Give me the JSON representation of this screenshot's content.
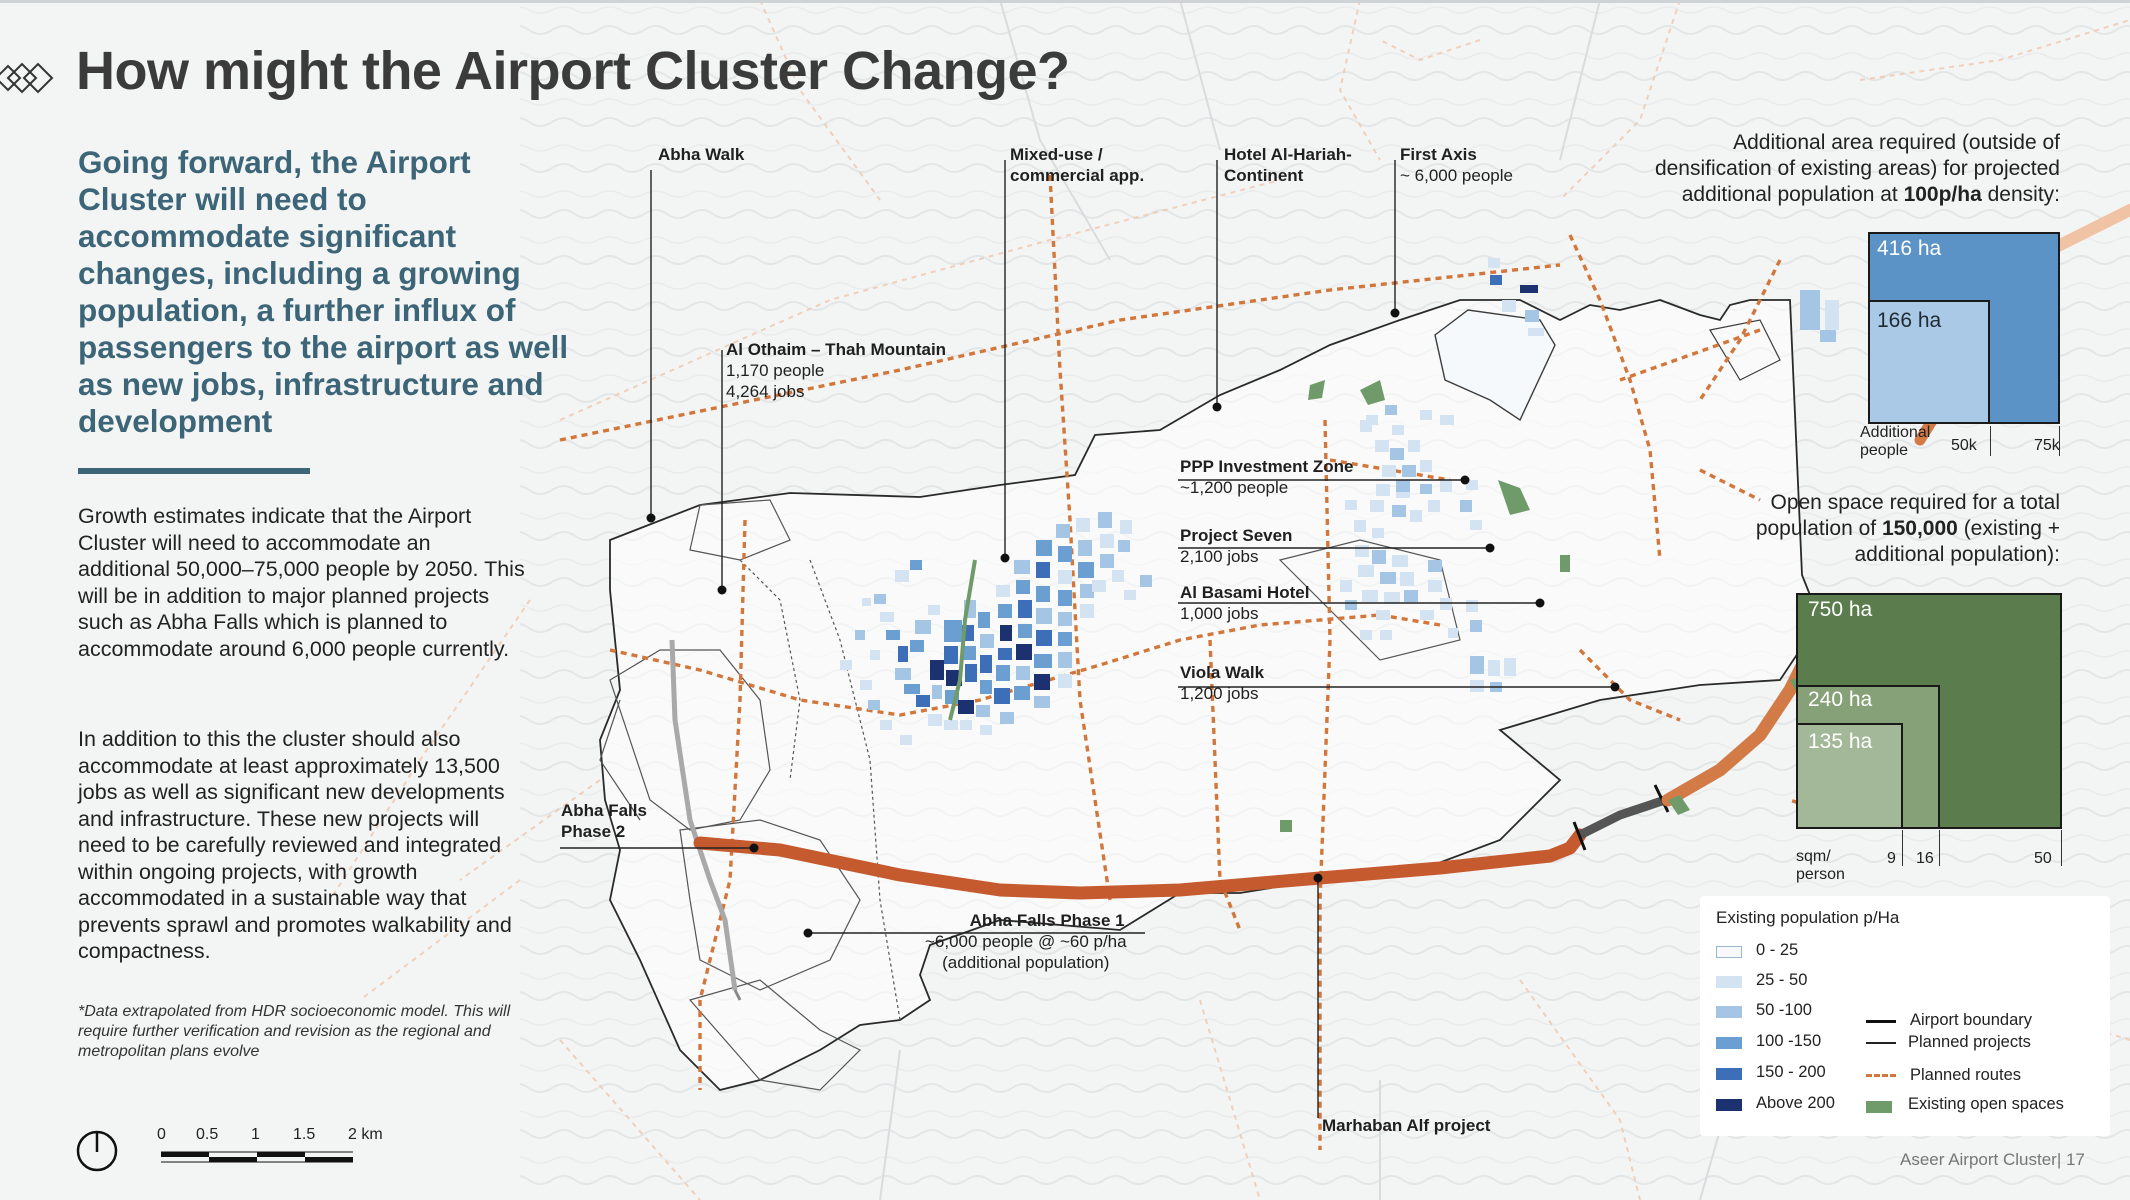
{
  "title": "How might the Airport Cluster Change?",
  "lead": "Going forward, the Airport Cluster will need to accommodate significant changes, including a growing population, a further influx of passengers to the airport as well as new jobs, infrastructure and development",
  "body": [
    "Growth estimates indicate that the Airport Cluster will need to accommodate an additional 50,000–75,000 people by 2050. This will be in addition to major planned projects such as Abha Falls which is planned to accommodate around 6,000 people currently.",
    "In addition to this the cluster should also accommodate at least approximately 13,500 jobs as well as significant new developments and infrastructure. These new projects will need to be carefully reviewed and integrated within ongoing projects, with growth accommodated in a sustainable way that prevents sprawl and promotes walkability and compactness."
  ],
  "note": "*Data extrapolated from HDR socioeconomic model. This will require further verification and revision as the regional and metropolitan plans evolve",
  "scale_labels": [
    "0",
    "0.5",
    "1",
    "1.5",
    "2 km"
  ],
  "labels": {
    "abha_walk": "Abha Walk",
    "mixed_use_1": "Mixed-use /",
    "mixed_use_2": "commercial app.",
    "hotel_1": "Hotel Al-Hariah-",
    "hotel_2": "Continent",
    "first_axis": "First Axis",
    "first_axis_sub": "~ 6,000 people",
    "al_othaim": "Al Othaim – Thah Mountain",
    "al_othaim_people": "1,170 people",
    "al_othaim_jobs": "4,264 jobs",
    "ppp": "PPP Investment Zone",
    "ppp_sub": "~1,200 people",
    "project_seven": "Project Seven",
    "project_seven_sub": "2,100 jobs",
    "al_basami": "Al Basami Hotel",
    "al_basami_sub": "1,000 jobs",
    "viola": "Viola Walk",
    "viola_sub": "1,200 jobs",
    "abha_falls_2_1": "Abha Falls",
    "abha_falls_2_2": "Phase 2",
    "abha_falls_1": "Abha Falls Phase 1",
    "abha_falls_1_sub1": "~6,000 people @ ~60 p/ha",
    "abha_falls_1_sub2": "(additional population)",
    "marhaban": "Marhaban Alf project"
  },
  "area_panel": {
    "text": [
      "Additional area required (outside of",
      "densification of existing areas) for projected",
      "additional population at "
    ],
    "density": "100p/ha",
    "density_suffix": " density:",
    "squares": [
      {
        "label": "416 ha",
        "color": "#5b93c7"
      },
      {
        "label": "166 ha",
        "color": "#a9c9e6"
      }
    ],
    "axis_title": [
      "Additional",
      "people"
    ],
    "axis_ticks": [
      "50k",
      "75k"
    ]
  },
  "open_panel": {
    "text": [
      "Open space required for a total",
      "population of ",
      "150,000",
      " (existing +",
      "additional population):"
    ],
    "squares": [
      {
        "label": "750 ha",
        "color": "#5b7d4d"
      },
      {
        "label": "240 ha",
        "color": "#86a178"
      },
      {
        "label": "135 ha",
        "color": "#a3b898"
      }
    ],
    "axis_title": [
      "sqm/",
      "person"
    ],
    "axis_ticks": [
      "9",
      "16",
      "50"
    ]
  },
  "legend": {
    "title": "Existing population p/Ha",
    "bins": [
      {
        "label": "0 - 25",
        "color": "#f7f9fb"
      },
      {
        "label": "25 - 50",
        "color": "#d3e3f1"
      },
      {
        "label": "50 -100",
        "color": "#a4c6e4"
      },
      {
        "label": "100 -150",
        "color": "#6c9fd1"
      },
      {
        "label": "150 - 200",
        "color": "#3d6fb8"
      },
      {
        "label": "Above 200",
        "color": "#1c3270"
      }
    ],
    "lines": [
      {
        "label": "Airport boundary"
      },
      {
        "label": "Planned projects"
      },
      {
        "label": "Planned routes",
        "color": "#d2773c"
      },
      {
        "label": "Existing open spaces",
        "color": "#6f9a6a"
      }
    ]
  },
  "footer": "Aseer Airport Cluster| 17"
}
